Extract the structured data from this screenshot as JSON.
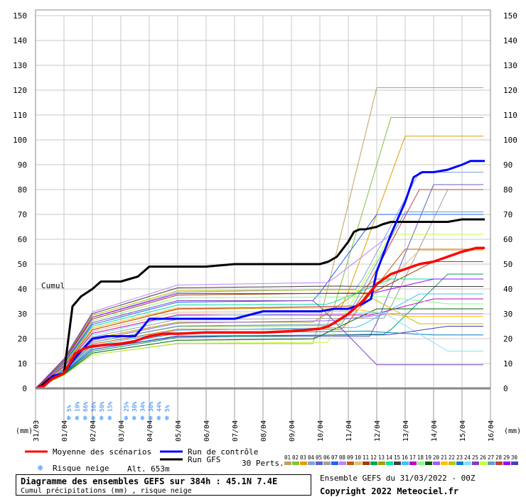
{
  "chart_data": {
    "type": "line",
    "ylim": [
      0,
      150
    ],
    "yticks": [
      0,
      10,
      20,
      30,
      40,
      50,
      60,
      70,
      80,
      90,
      100,
      110,
      120,
      130,
      140,
      150
    ],
    "ylabel_unit": "(mm)",
    "xlabels": [
      "31/03",
      "01/04",
      "02/04",
      "03/04",
      "04/04",
      "05/04",
      "06/04",
      "07/04",
      "08/04",
      "09/04",
      "10/04",
      "11/04",
      "12/04",
      "13/04",
      "14/04",
      "15/04",
      "16/04"
    ],
    "annotation": "Cumul",
    "snow_risk": [
      "5%",
      "10%",
      "66%",
      "56%",
      "50%",
      "15%",
      "",
      "25%",
      "38%",
      "34%",
      "30%",
      "44%",
      "5%"
    ],
    "series_mean": {
      "name": "Moyenne des scénarios",
      "color": "#ff0000",
      "x": [
        0,
        0.3,
        0.6,
        1,
        1.2,
        1.4,
        1.7,
        2,
        2.5,
        3,
        3.5,
        4,
        4.5,
        5,
        6,
        7,
        8,
        9,
        9.5,
        10,
        10.3,
        10.6,
        11,
        11.5,
        12,
        12.5,
        13,
        13.5,
        14,
        14.5,
        15,
        15.5,
        15.8
      ],
      "y": [
        0,
        1,
        4,
        6,
        10,
        14,
        16,
        17,
        17.5,
        18,
        19,
        21,
        22,
        22,
        22.5,
        22.5,
        22.5,
        23,
        23.5,
        24,
        25,
        27,
        30,
        35,
        42,
        46,
        48,
        50,
        51,
        53,
        55,
        56.5,
        56.5
      ]
    },
    "series_control": {
      "name": "Run de contrôle",
      "color": "#0000ff",
      "x": [
        0,
        0.3,
        0.6,
        1,
        1.3,
        1.6,
        2,
        2.5,
        3,
        3.5,
        3.8,
        4,
        5,
        6,
        7,
        8,
        9,
        10,
        10.5,
        11,
        11.5,
        11.8,
        12,
        12.5,
        13,
        13.3,
        13.6,
        14,
        14.5,
        15,
        15.3,
        15.8
      ],
      "y": [
        0,
        1,
        5,
        6,
        11,
        15,
        20,
        21,
        21,
        21,
        25,
        28,
        28,
        28,
        28,
        31,
        31,
        31,
        32,
        32,
        34,
        36,
        47,
        62,
        75,
        85,
        87,
        87,
        88,
        90,
        91.5,
        91.5
      ]
    },
    "series_gfs": {
      "name": "Run GFS",
      "color": "#000000",
      "x": [
        0,
        0.2,
        0.5,
        1,
        1.3,
        1.6,
        2,
        2.3,
        2.6,
        3,
        3.3,
        3.6,
        4,
        4.3,
        5,
        6,
        7,
        8,
        9,
        10,
        10.3,
        10.6,
        11,
        11.2,
        11.4,
        11.6,
        12,
        12.2,
        12.5,
        13,
        14,
        14.5,
        15,
        15.8
      ],
      "y": [
        0,
        1,
        4,
        6,
        33,
        37,
        40,
        43,
        43,
        43,
        44,
        45,
        49,
        49,
        49,
        49,
        50,
        50,
        50,
        50,
        51,
        53,
        59,
        63,
        64,
        64,
        65,
        66,
        67,
        67,
        67,
        67,
        68,
        68
      ]
    },
    "ensemble_finals": [
      121,
      109,
      101.5,
      87,
      82,
      80,
      70,
      62,
      56,
      55.5,
      51,
      46,
      44,
      44,
      41,
      38,
      36,
      34,
      32,
      30,
      29,
      26,
      21.5,
      15,
      9.5,
      62,
      71,
      80,
      44,
      25
    ],
    "legend": {
      "mean": "Moyenne des scénarios",
      "control": "Run de contrôle",
      "gfs": "Run GFS",
      "snow": "Risque neige",
      "alt": "Alt. 653m",
      "perts": "30 Perts.",
      "pert_ids": [
        "01",
        "02",
        "03",
        "04",
        "05",
        "06",
        "07",
        "08",
        "09",
        "10",
        "11",
        "12",
        "13",
        "14",
        "15",
        "16",
        "17",
        "18",
        "19",
        "20",
        "21",
        "22",
        "23",
        "24",
        "25",
        "26",
        "27",
        "28",
        "29",
        "30"
      ],
      "pert_colors": [
        "#c0a060",
        "#80c040",
        "#e0a000",
        "#80a0e0",
        "#6060c0",
        "#a0a0a0",
        "#2060ff",
        "#c080ff",
        "#c06000",
        "#e0c080",
        "#a04000",
        "#00a060",
        "#a0a000",
        "#00e0a0",
        "#404040",
        "#40c0ff",
        "#c000c0",
        "#80ff80",
        "#006000",
        "#a060ff",
        "#ffc000",
        "#c0c000",
        "#0080c0",
        "#80e0ff",
        "#8040c0",
        "#c0ff40",
        "#60a0c0",
        "#c04040",
        "#a000ff",
        "#4040c0"
      ]
    }
  },
  "footer": {
    "title": "Diagramme des ensembles GEFS sur 384h : 45.1N 7.4E",
    "subtitle": "Cumul précipitations (mm) , risque neige",
    "run_info": "Ensemble GEFS du 31/03/2022 - 00Z",
    "copyright": "Copyright 2022 Meteociel.fr"
  }
}
